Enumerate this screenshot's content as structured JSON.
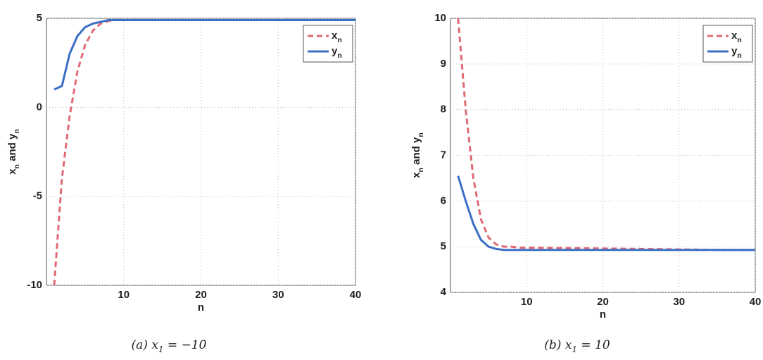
{
  "chart_data": [
    {
      "type": "line",
      "caption": "(a) x1 = −10",
      "xlabel": "n",
      "ylabel": "xn and yn",
      "x": [
        1,
        2,
        3,
        4,
        5,
        6,
        7,
        8,
        9,
        10,
        15,
        20,
        25,
        30,
        35,
        40
      ],
      "series": [
        {
          "name": "xn",
          "color": "#e06a74",
          "dashed": true,
          "values": [
            -10,
            -4,
            -0.5,
            2,
            3.5,
            4.3,
            4.7,
            4.85,
            4.9,
            4.9,
            4.9,
            4.9,
            4.9,
            4.9,
            4.9,
            4.9
          ]
        },
        {
          "name": "yn",
          "color": "#3b6fc6",
          "dashed": false,
          "values": [
            1,
            1.2,
            3,
            4,
            4.5,
            4.7,
            4.8,
            4.9,
            4.9,
            4.9,
            4.9,
            4.9,
            4.9,
            4.9,
            4.9,
            4.9
          ]
        }
      ],
      "xlim": [
        0,
        40
      ],
      "xticks": [
        10,
        20,
        30,
        40
      ],
      "ylim": [
        -10,
        5
      ],
      "yticks": [
        -10,
        -5,
        0,
        5
      ],
      "grid": true,
      "legend": "top-right"
    },
    {
      "type": "line",
      "caption": "(b) x1 = 10",
      "xlabel": "n",
      "ylabel": "xn and yn",
      "x": [
        1,
        2,
        3,
        4,
        5,
        6,
        7,
        8,
        9,
        10,
        15,
        20,
        25,
        30,
        35,
        40
      ],
      "series": [
        {
          "name": "xn",
          "color": "#e06a74",
          "dashed": true,
          "values": [
            10,
            8,
            6.5,
            5.6,
            5.2,
            5.05,
            5,
            5,
            4.98,
            4.98,
            4.97,
            4.96,
            4.95,
            4.94,
            4.93,
            4.93
          ]
        },
        {
          "name": "yn",
          "color": "#3b6fc6",
          "dashed": false,
          "values": [
            6.55,
            6,
            5.5,
            5.15,
            5,
            4.95,
            4.93,
            4.93,
            4.93,
            4.93,
            4.93,
            4.93,
            4.93,
            4.93,
            4.93,
            4.93
          ]
        }
      ],
      "xlim": [
        0,
        40
      ],
      "xticks": [
        10,
        20,
        30,
        40
      ],
      "ylim": [
        4,
        10
      ],
      "yticks": [
        4,
        5,
        6,
        7,
        8,
        9,
        10
      ],
      "grid": true,
      "legend": "top-right"
    }
  ]
}
